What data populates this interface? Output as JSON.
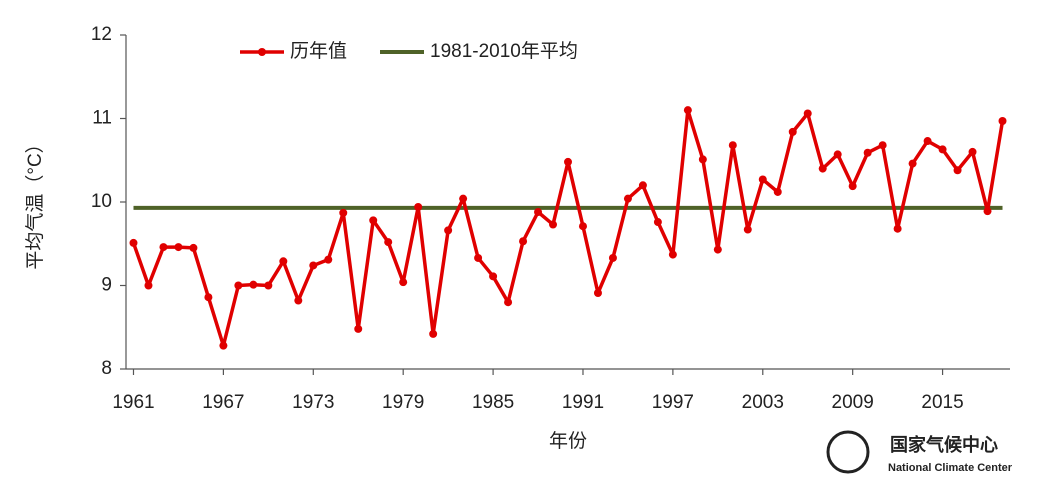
{
  "chart_data": {
    "type": "line",
    "y_label": "平均气温（°C）",
    "x_label": "年份",
    "x": [
      1961,
      1962,
      1963,
      1964,
      1965,
      1966,
      1967,
      1968,
      1969,
      1970,
      1971,
      1972,
      1973,
      1974,
      1975,
      1976,
      1977,
      1978,
      1979,
      1980,
      1981,
      1982,
      1983,
      1984,
      1985,
      1986,
      1987,
      1988,
      1989,
      1990,
      1991,
      1992,
      1993,
      1994,
      1995,
      1996,
      1997,
      1998,
      1999,
      2000,
      2001,
      2002,
      2003,
      2004,
      2005,
      2006,
      2007,
      2008,
      2009,
      2010,
      2011,
      2012,
      2013,
      2014,
      2015,
      2016,
      2017,
      2018,
      2019
    ],
    "series": [
      {
        "name": "历年值",
        "color": "#e00000",
        "values": [
          9.51,
          9.0,
          9.46,
          9.46,
          9.45,
          8.86,
          8.28,
          9.0,
          9.01,
          9.0,
          9.29,
          8.82,
          9.24,
          9.31,
          9.87,
          8.48,
          9.78,
          9.52,
          9.04,
          9.94,
          8.42,
          9.66,
          10.04,
          9.33,
          9.11,
          8.8,
          9.53,
          9.88,
          9.73,
          10.48,
          9.71,
          8.91,
          9.33,
          10.04,
          10.2,
          9.76,
          9.37,
          11.1,
          10.51,
          9.43,
          10.68,
          9.67,
          10.27,
          10.12,
          10.84,
          11.06,
          10.4,
          10.57,
          10.19,
          10.59,
          10.68,
          9.68,
          10.46,
          10.73,
          10.63,
          10.38,
          10.6,
          9.89,
          10.97
        ]
      }
    ],
    "reference_line": {
      "name": "1981-2010年平均",
      "value": 9.93,
      "color": "#4f6228"
    },
    "xlim": [
      1960.5,
      2019.5
    ],
    "xticks": [
      1961,
      1967,
      1973,
      1979,
      1985,
      1991,
      1997,
      2003,
      2009,
      2015
    ],
    "ylim": [
      8,
      12
    ],
    "yticks": [
      8,
      9,
      10,
      11,
      12
    ],
    "legend": "top"
  },
  "logo": {
    "cn": "国家气候中心",
    "en": "National Climate Center"
  }
}
